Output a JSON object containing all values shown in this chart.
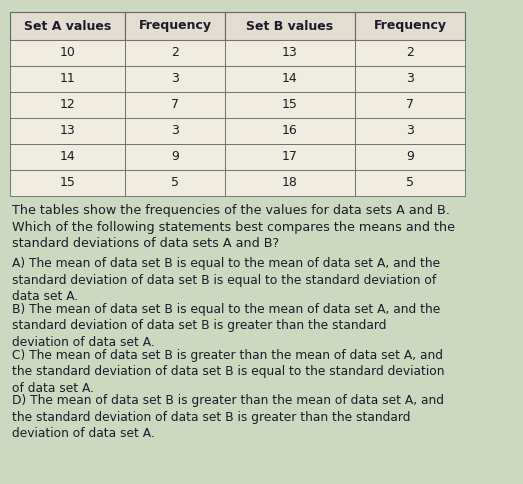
{
  "table_a": {
    "headers": [
      "Set A values",
      "Frequency"
    ],
    "rows": [
      [
        "10",
        "2"
      ],
      [
        "11",
        "3"
      ],
      [
        "12",
        "7"
      ],
      [
        "13",
        "3"
      ],
      [
        "14",
        "9"
      ],
      [
        "15",
        "5"
      ]
    ]
  },
  "table_b": {
    "headers": [
      "Set B values",
      "Frequency"
    ],
    "rows": [
      [
        "13",
        "2"
      ],
      [
        "14",
        "3"
      ],
      [
        "15",
        "7"
      ],
      [
        "16",
        "3"
      ],
      [
        "17",
        "9"
      ],
      [
        "18",
        "5"
      ]
    ]
  },
  "question": "The tables show the frequencies of the values for data sets A and B.\nWhich of the following statements best compares the means and the\nstandard deviations of data sets A and B?",
  "choices": [
    "A) The mean of data set B is equal to the mean of data set A, and the\nstandard deviation of data set B is equal to the standard deviation of\ndata set A.",
    "B) The mean of data set B is equal to the mean of data set A, and the\nstandard deviation of data set B is greater than the standard\ndeviation of data set A.",
    "C) The mean of data set B is greater than the mean of data set A, and\nthe standard deviation of data set B is equal to the standard deviation\nof data set A.",
    "D) The mean of data set B is greater than the mean of data set A, and\nthe standard deviation of data set B is greater than the standard\ndeviation of data set A."
  ],
  "bg_color": "#cdd9bf",
  "table_bg": "#f0ece0",
  "header_bg": "#e2ddd0",
  "text_color": "#1a1a2a",
  "font_size_table": 9,
  "font_size_question": 9.2,
  "font_size_choice": 8.8
}
